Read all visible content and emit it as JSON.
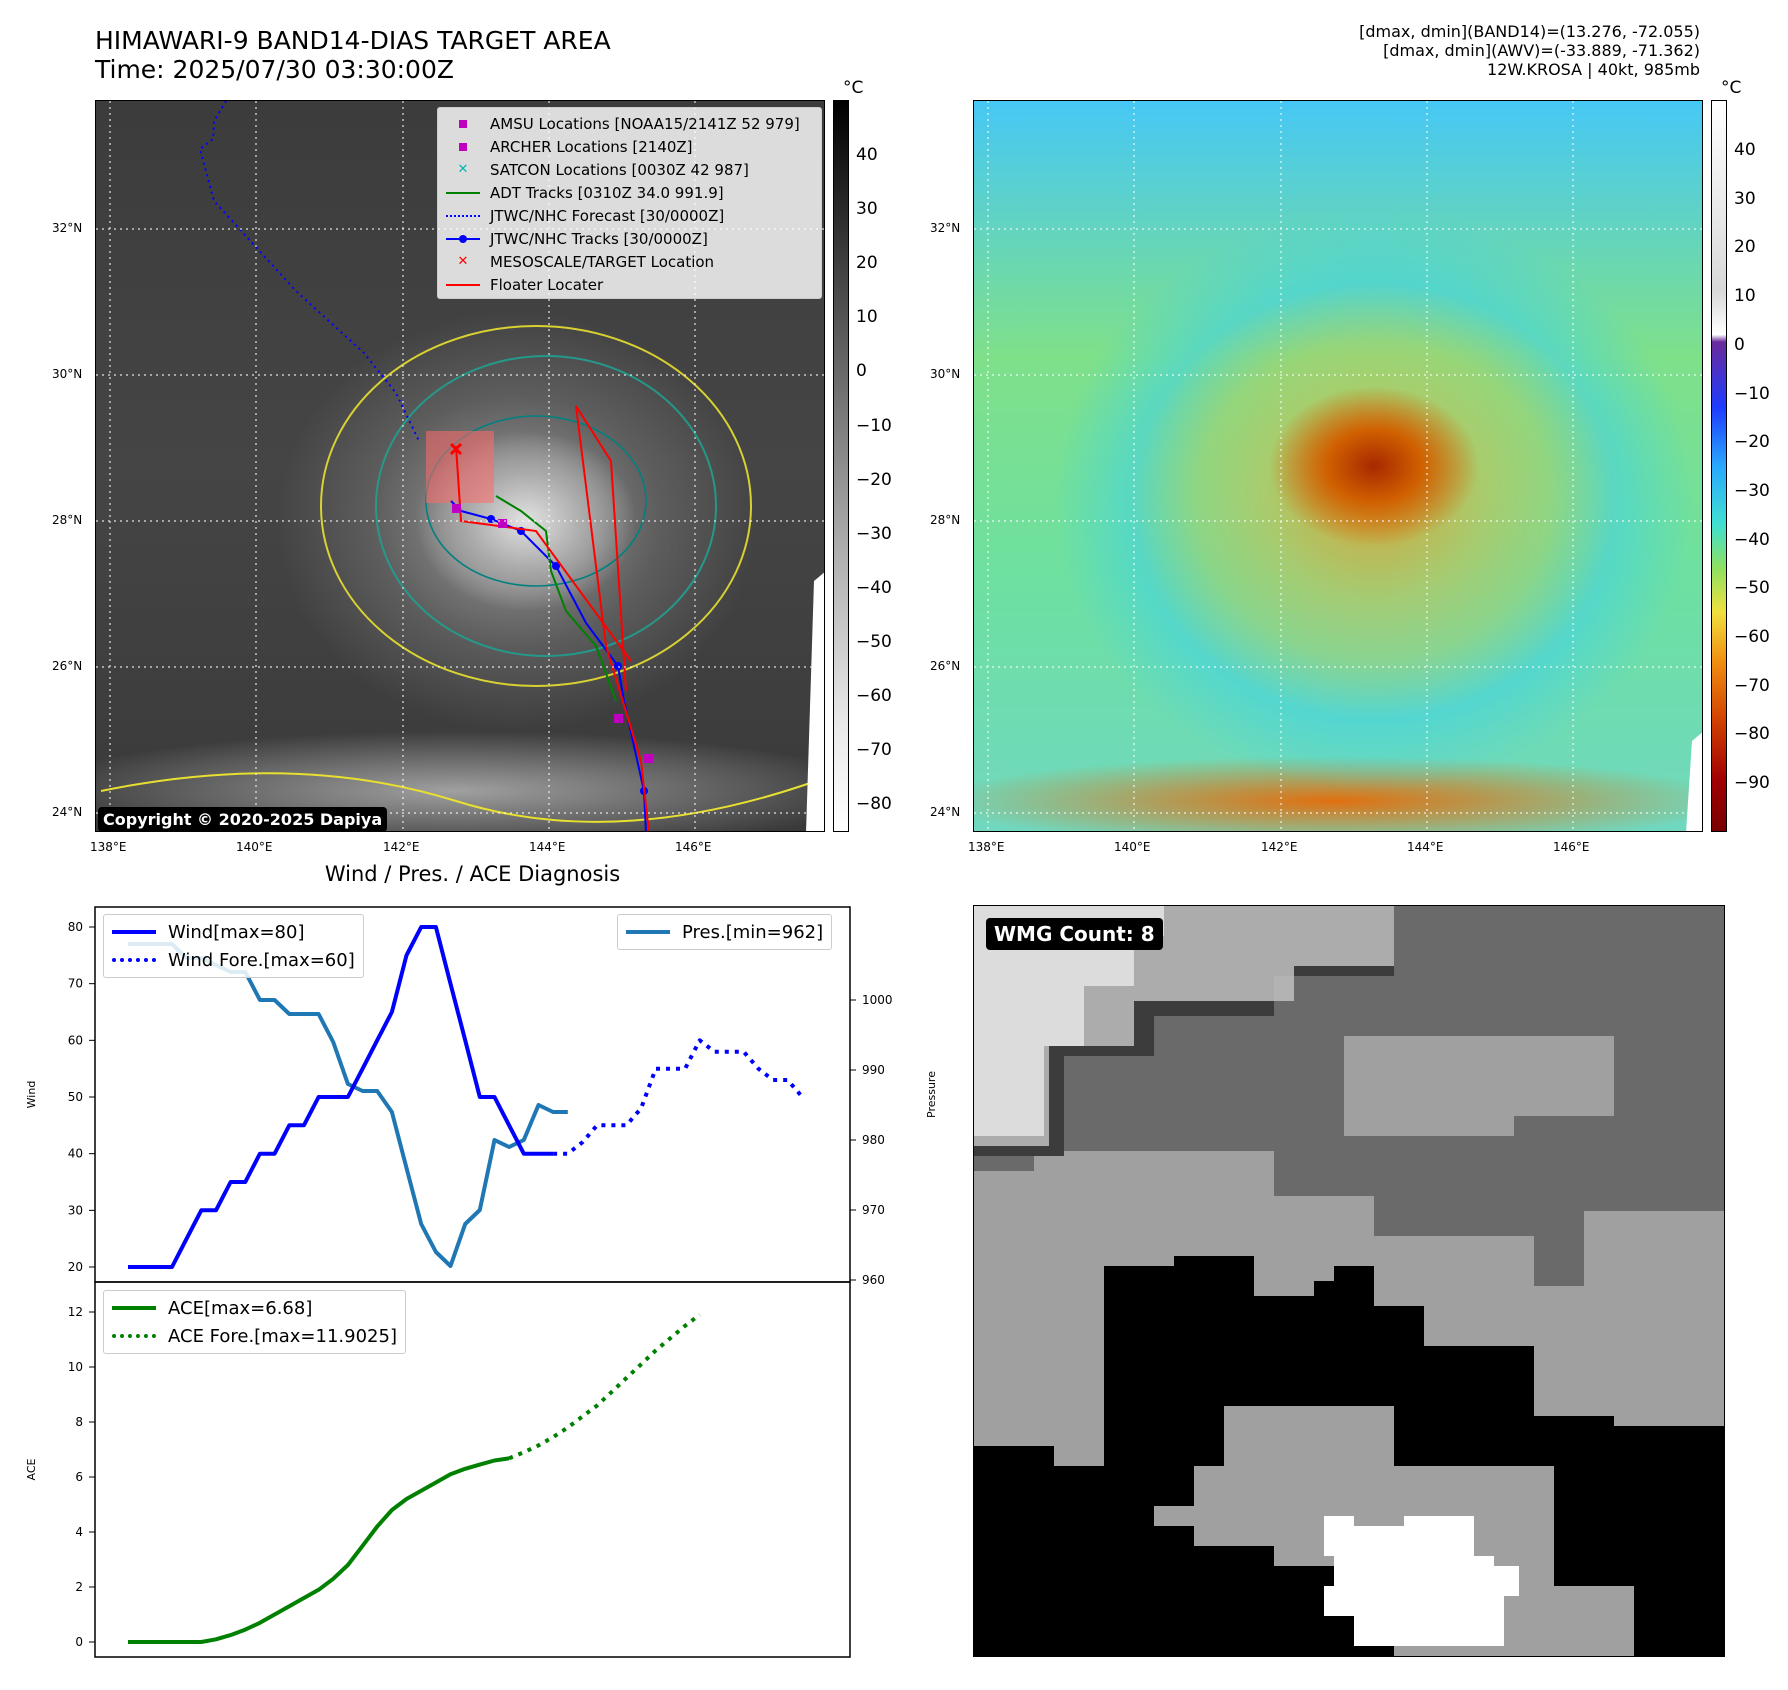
{
  "header": {
    "title_line1": "HIMAWARI-9 BAND14-DIAS TARGET AREA",
    "title_line2": "Time: 2025/07/30 03:30:00Z",
    "info_line1": "[dmax, dmin](BAND14)=(13.276, -72.055)",
    "info_line2": "[dmax, dmin](AWV)=(-33.889, -71.362)",
    "info_line3": "12W.KROSA | 40kt, 985mb"
  },
  "map": {
    "lon_ticks": [
      "138°E",
      "140°E",
      "142°E",
      "144°E",
      "146°E"
    ],
    "lat_ticks": [
      "32°N",
      "30°N",
      "28°N",
      "26°N",
      "24°N"
    ],
    "copyright": "Copyright © 2020-2025 Dapiya",
    "legend": [
      {
        "label": "AMSU Locations [NOAA15/2141Z 52 979]",
        "symbol": "square",
        "color": "#c000c0"
      },
      {
        "label": "ARCHER Locations [2140Z]",
        "symbol": "square",
        "color": "#c000c0"
      },
      {
        "label": "SATCON Locations [0030Z 42 987]",
        "symbol": "x",
        "color": "#00b5b5"
      },
      {
        "label": "ADT Tracks [0310Z 34.0 991.9]",
        "symbol": "line",
        "color": "#008000"
      },
      {
        "label": "JTWC/NHC Forecast [30/0000Z]",
        "symbol": "dotted",
        "color": "#0000ff"
      },
      {
        "label": "JTWC/NHC Tracks [30/0000Z]",
        "symbol": "line-dot",
        "color": "#0000ff"
      },
      {
        "label": "MESOSCALE/TARGET Location",
        "symbol": "x",
        "color": "#ff0000"
      },
      {
        "label": "Floater Locater",
        "symbol": "line",
        "color": "#ff0000"
      }
    ]
  },
  "colorbar_gray": {
    "unit": "°C",
    "ticks": [
      "40",
      "30",
      "20",
      "10",
      "0",
      "−10",
      "−20",
      "−30",
      "−40",
      "−50",
      "−60",
      "−70",
      "−80"
    ]
  },
  "colorbar_color": {
    "unit": "°C",
    "ticks": [
      "40",
      "30",
      "20",
      "10",
      "0",
      "−10",
      "−20",
      "−30",
      "−40",
      "−50",
      "−60",
      "−70",
      "−80",
      "−90"
    ]
  },
  "wmg": {
    "badge": "WMG Count: 8"
  },
  "chart_data": [
    {
      "type": "line",
      "title": "Wind / Pres. / ACE Diagnosis",
      "ylabel": "Wind",
      "ylabel_right": "Pressure",
      "ylim": [
        18,
        83
      ],
      "ylim_right": [
        960,
        1010
      ],
      "yticks": [
        "80",
        "70",
        "60",
        "50",
        "40",
        "30",
        "20"
      ],
      "yticks_right": [
        "1000",
        "990",
        "980",
        "970",
        "960"
      ],
      "legend_left": [
        "Wind[max=80]",
        "Wind Fore.[max=60]"
      ],
      "legend_right": [
        "Pres.[min=962]"
      ],
      "series": [
        {
          "name": "Wind[max=80]",
          "color": "#0000ff",
          "style": "solid",
          "axis": "left",
          "values": [
            20,
            20,
            20,
            20,
            25,
            30,
            30,
            35,
            35,
            40,
            40,
            45,
            45,
            50,
            50,
            50,
            55,
            60,
            65,
            75,
            80,
            80,
            70,
            60,
            50,
            50,
            45,
            40,
            40,
            40
          ]
        },
        {
          "name": "Wind Fore.[max=60]",
          "color": "#0000ff",
          "style": "dotted",
          "axis": "left",
          "values": [
            40,
            40,
            42,
            45,
            45,
            45,
            48,
            55,
            55,
            55,
            60,
            58,
            58,
            58,
            55,
            53,
            53,
            50
          ],
          "x_start": 29
        },
        {
          "name": "Pres.[min=962]",
          "color": "#1f77b4",
          "style": "solid",
          "axis": "right",
          "values": [
            1008,
            1008,
            1008,
            1008,
            1006,
            1006,
            1005,
            1004,
            1004,
            1000,
            1000,
            998,
            998,
            998,
            994,
            988,
            987,
            987,
            984,
            976,
            968,
            964,
            962,
            968,
            970,
            980,
            979,
            980,
            985,
            984,
            984
          ]
        }
      ]
    },
    {
      "type": "line",
      "ylabel": "ACE",
      "ylim": [
        -0.5,
        12.5
      ],
      "yticks": [
        "12",
        "10",
        "8",
        "6",
        "4",
        "2",
        "0"
      ],
      "legend": [
        "ACE[max=6.68]",
        "ACE Fore.[max=11.9025]"
      ],
      "series": [
        {
          "name": "ACE[max=6.68]",
          "color": "#008000",
          "style": "solid",
          "values": [
            0,
            0,
            0,
            0,
            0,
            0,
            0.1,
            0.25,
            0.45,
            0.7,
            1.0,
            1.3,
            1.6,
            1.9,
            2.3,
            2.8,
            3.5,
            4.2,
            4.8,
            5.2,
            5.5,
            5.8,
            6.1,
            6.3,
            6.45,
            6.6,
            6.68
          ]
        },
        {
          "name": "ACE Fore.[max=11.9025]",
          "color": "#008000",
          "style": "dotted",
          "x_start": 26,
          "values": [
            6.68,
            6.9,
            7.15,
            7.45,
            7.8,
            8.2,
            8.6,
            9.1,
            9.6,
            10.1,
            10.6,
            11.05,
            11.5,
            11.9025
          ]
        }
      ]
    }
  ]
}
